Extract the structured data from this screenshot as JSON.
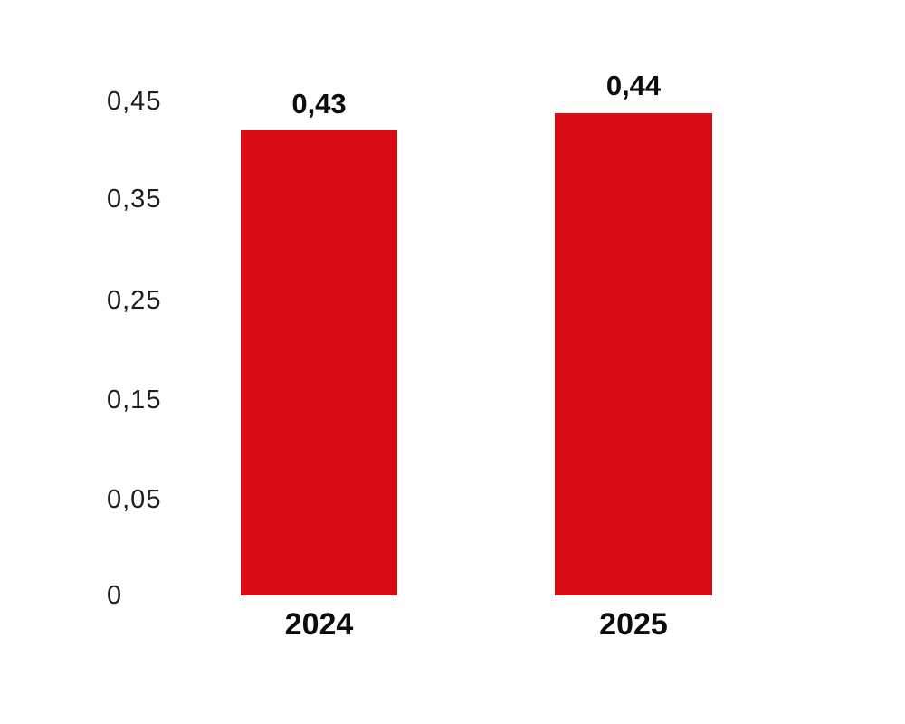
{
  "chart_data": {
    "type": "bar",
    "categories": [
      "2024",
      "2025"
    ],
    "values": [
      0.43,
      0.44
    ],
    "value_labels": [
      "0,43",
      "0,44"
    ],
    "y_ticks_top_to_bottom": [
      "0,45",
      "0,35",
      "0,25",
      "0,15",
      "0,05",
      "0"
    ],
    "ylim": [
      0,
      0.45
    ],
    "grid": false,
    "legend": false,
    "decimal_separator": ",",
    "bar_color": "#DA0B15",
    "text_color": "#0C0C0C",
    "background_color": "#FFFFFF"
  }
}
